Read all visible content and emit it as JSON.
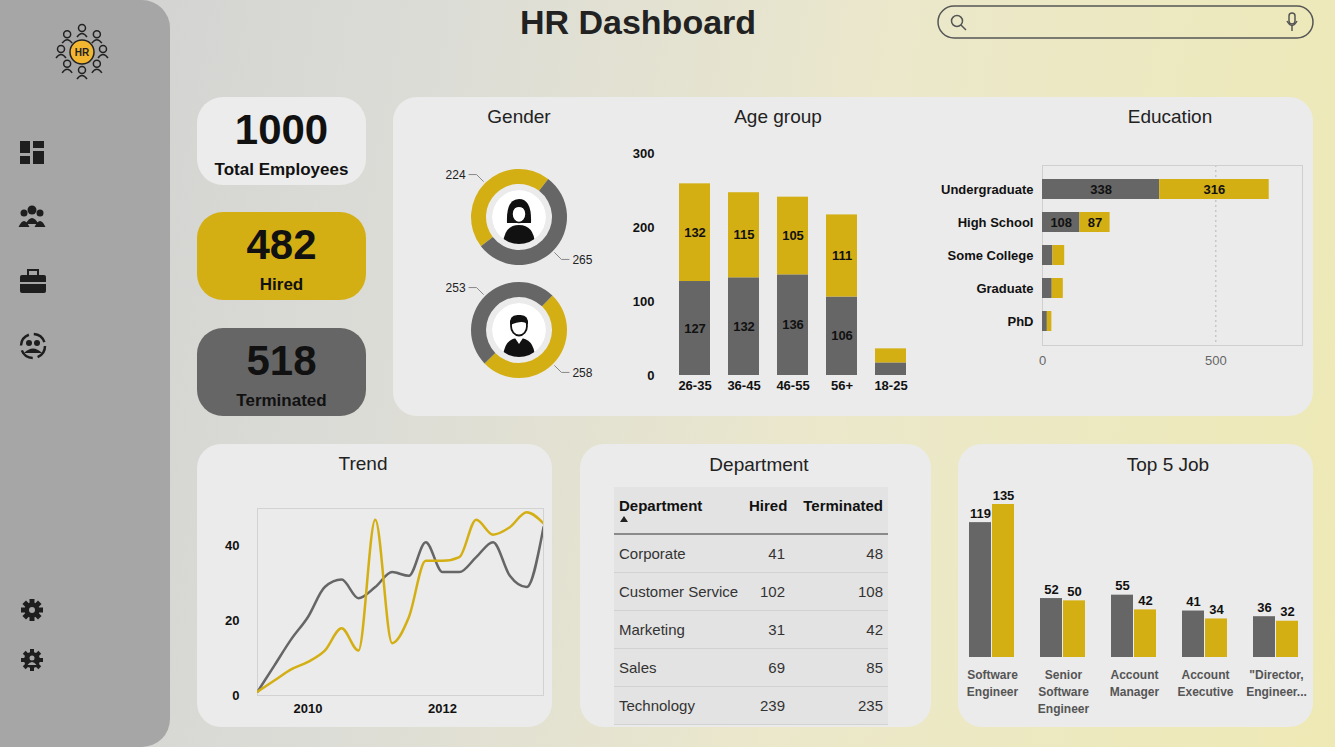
{
  "header": {
    "title": "HR Dashboard",
    "logo_text": "HR"
  },
  "kpis": [
    {
      "value": 1000,
      "label": "Total Employees",
      "color": "#ececec"
    },
    {
      "value": 482,
      "label": "Hired",
      "color": "#d4af14"
    },
    {
      "value": 518,
      "label": "Terminated",
      "color": "#666666"
    }
  ],
  "chart_data": [
    {
      "type": "pie",
      "title": "Gender",
      "categories": [
        "Hired",
        "Terminated"
      ],
      "colors": [
        "#d4af14",
        "#666666"
      ],
      "series": [
        {
          "values": [
            224,
            265
          ]
        },
        {
          "values": [
            258,
            253
          ]
        }
      ],
      "data_labels": true
    },
    {
      "type": "bar",
      "title": "Age group",
      "stacked": true,
      "categories": [
        "26-35",
        "36-45",
        "46-55",
        "56+",
        "18-25"
      ],
      "series": [
        {
          "name": "Terminated",
          "color": "#666666",
          "values": [
            127,
            132,
            136,
            106,
            17
          ],
          "value_labels": [
            "127",
            "132",
            "136",
            "106",
            null
          ]
        },
        {
          "name": "Hired",
          "color": "#d4af14",
          "values": [
            132,
            115,
            105,
            111,
            19
          ],
          "value_labels": [
            "132",
            "115",
            "105",
            "111",
            null
          ]
        }
      ],
      "ylim": [
        0,
        300
      ],
      "yticks": [
        0,
        100,
        200,
        300
      ],
      "data_labels": true
    },
    {
      "type": "bar",
      "title": "Education",
      "orientation": "horizontal",
      "stacked": true,
      "categories": [
        "Undergraduate",
        "High School",
        "Some College",
        "Graduate",
        "PhD"
      ],
      "series": [
        {
          "name": "Terminated",
          "color": "#666666",
          "values": [
            338,
            108,
            30,
            28,
            14
          ],
          "value_labels": [
            "338",
            "108",
            null,
            null,
            null
          ]
        },
        {
          "name": "Hired",
          "color": "#d4af14",
          "values": [
            316,
            87,
            34,
            32,
            13
          ],
          "value_labels": [
            "316",
            "87",
            null,
            null,
            null
          ]
        }
      ],
      "xlim": [
        0,
        750
      ],
      "xticks": [
        0,
        500
      ],
      "grid": true,
      "data_labels": true
    },
    {
      "type": "line",
      "title": "Trend",
      "x": [
        2009.25,
        2009.5,
        2009.75,
        2010,
        2010.25,
        2010.5,
        2010.75,
        2011,
        2011.25,
        2011.5,
        2011.75,
        2012,
        2012.25,
        2012.5,
        2012.75,
        2013,
        2013.25,
        2013.5
      ],
      "series": [
        {
          "name": "Terminated",
          "color": "#666666",
          "values": [
            1,
            8,
            15,
            21,
            29,
            31,
            26,
            29,
            33,
            32,
            41,
            33,
            33,
            37,
            41,
            32,
            29,
            45
          ]
        },
        {
          "name": "Hired",
          "color": "#d4af14",
          "values": [
            1,
            4,
            7,
            9,
            12,
            18,
            12,
            47,
            14,
            21,
            36,
            36,
            37,
            47,
            43,
            45,
            49,
            46
          ]
        }
      ],
      "xlim": [
        2009.25,
        2013.5
      ],
      "xticks": [
        2010,
        2012
      ],
      "ylim": [
        0,
        50
      ],
      "yticks": [
        0,
        20,
        40
      ]
    },
    {
      "type": "bar",
      "title": "Top 5 Job",
      "categories": [
        "Software Engineer",
        "Senior Software Engineer",
        "Account Manager",
        "Account Executive",
        "\"Director, Engineer..."
      ],
      "series": [
        {
          "name": "Terminated",
          "color": "#666666",
          "values": [
            119,
            52,
            55,
            41,
            36
          ]
        },
        {
          "name": "Hired",
          "color": "#d4af14",
          "values": [
            135,
            50,
            42,
            34,
            32
          ]
        }
      ],
      "ylim": [
        0,
        135
      ],
      "yticks": [],
      "tick_labels": "x",
      "data_labels": true
    }
  ],
  "department_table": {
    "title": "Department",
    "columns": [
      "Department",
      "Hired",
      "Terminated"
    ],
    "rows": [
      [
        "Corporate",
        41,
        48
      ],
      [
        "Customer Service",
        102,
        108
      ],
      [
        "Marketing",
        31,
        42
      ],
      [
        "Sales",
        69,
        85
      ],
      [
        "Technology",
        239,
        235
      ]
    ]
  }
}
